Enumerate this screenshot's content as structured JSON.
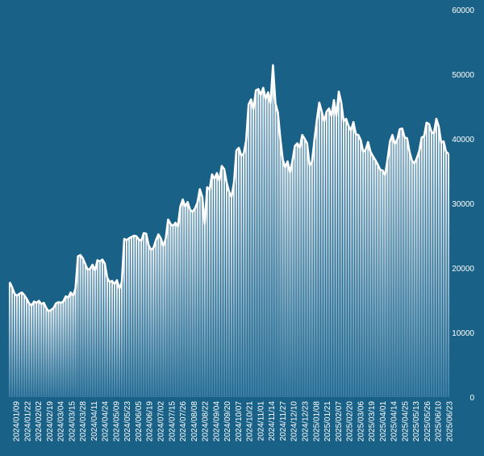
{
  "chart_data": {
    "type": "area",
    "colors": {
      "background": "#1a6187",
      "line": "#ffffff",
      "fill_top": "#ffffff",
      "fill_bottom": "#3d7fa6"
    },
    "y_ticks": [
      "0",
      "10000",
      "20000",
      "30000",
      "40000",
      "50000",
      "60000"
    ],
    "ylim": [
      0,
      60000
    ],
    "y_axis_position": "right",
    "grid": false,
    "x_tick_labels": [
      "2024/01/09",
      "2024/01/22",
      "2024/02/02",
      "2024/02/19",
      "2024/03/04",
      "2024/03/15",
      "2024/03/28",
      "2024/04/11",
      "2024/04/24",
      "2024/05/09",
      "2024/05/23",
      "2024/06/05",
      "2024/06/19",
      "2024/07/02",
      "2024/07/15",
      "2024/07/26",
      "2024/08/08",
      "2024/08/22",
      "2024/09/04",
      "2024/09/20",
      "2024/10/07",
      "2024/10/21",
      "2024/11/01",
      "2024/11/14",
      "2024/11/27",
      "2024/12/10",
      "2024/12/23",
      "2025/01/08",
      "2025/01/21",
      "2025/02/07",
      "2025/02/20",
      "2025/03/06",
      "2025/03/19",
      "2025/04/01",
      "2025/04/14",
      "2025/04/25",
      "2025/05/13",
      "2025/05/26",
      "2025/06/10",
      "2025/06/23"
    ],
    "series": [
      {
        "values": [
          17800,
          17000,
          16000,
          15700,
          16000,
          16200,
          15800,
          15200,
          14500,
          14200,
          14800,
          14600,
          14900,
          14400,
          14600,
          13800,
          13300,
          13500,
          13800,
          14500,
          14700,
          14600,
          14800,
          15600,
          15400,
          16200,
          15700,
          16800,
          21800,
          22000,
          21500,
          20600,
          19700,
          19900,
          20500,
          19600,
          21200,
          21000,
          21300,
          20700,
          18500,
          17800,
          18000,
          17500,
          18100,
          16800,
          17800,
          24500,
          24300,
          24600,
          24800,
          25000,
          24900,
          24400,
          24200,
          25400,
          25300,
          23500,
          22800,
          23100,
          24300,
          25200,
          24600,
          23400,
          24500,
          27500,
          26800,
          26500,
          27000,
          26400,
          29500,
          30600,
          29500,
          30200,
          29000,
          28700,
          29200,
          30100,
          32200,
          31000,
          26800,
          32500,
          32100,
          34500,
          33800,
          34700,
          33500,
          35800,
          35300,
          33200,
          31800,
          31000,
          33200,
          38200,
          38600,
          37400,
          37700,
          39700,
          45300,
          46100,
          44600,
          47500,
          47700,
          46800,
          47900,
          46200,
          47200,
          45500,
          51400,
          45500,
          44100,
          40100,
          36800,
          35600,
          36500,
          34800,
          36600,
          38900,
          39300,
          38600,
          40600,
          40000,
          39300,
          35900,
          36400,
          39800,
          42900,
          45600,
          44200,
          42700,
          44200,
          44700,
          43500,
          46000,
          43500,
          47300,
          45600,
          42700,
          43100,
          42000,
          41300,
          42600,
          40700,
          40600,
          39800,
          38000,
          38300,
          39500,
          38000,
          37300,
          36700,
          36000,
          35200,
          35100,
          34400,
          36800,
          39600,
          40600,
          39200,
          39900,
          41500,
          41600,
          40200,
          40100,
          38000,
          36600,
          36200,
          37000,
          38100,
          40200,
          40400,
          42500,
          42300,
          41100,
          40800,
          43100,
          41900,
          39400,
          39600,
          38000,
          37700
        ]
      }
    ]
  }
}
